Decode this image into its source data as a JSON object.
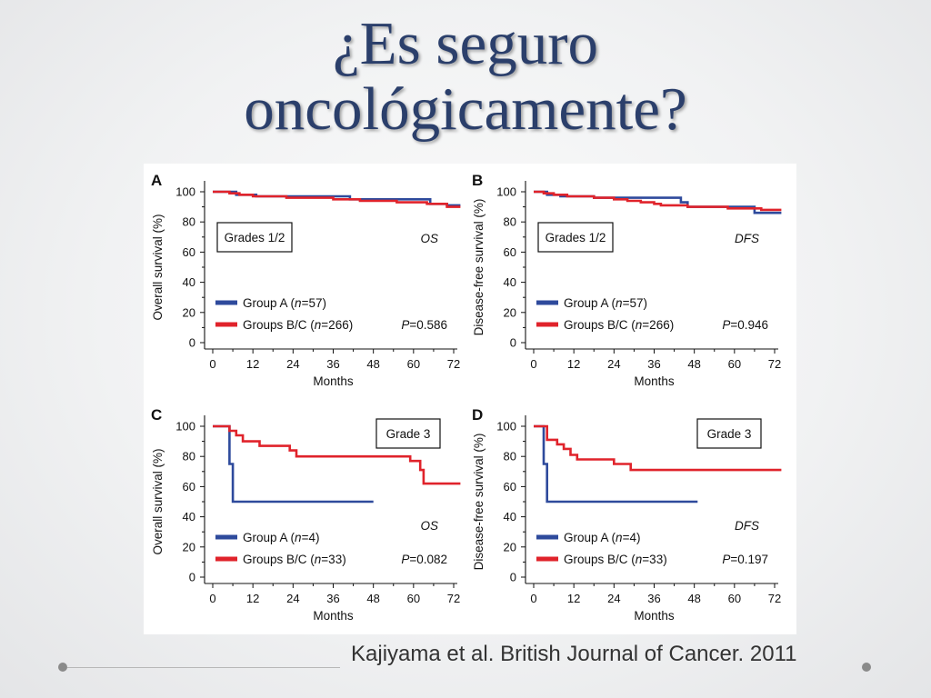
{
  "slide": {
    "title_line1": "¿Es seguro",
    "title_line2": "oncológicamente?",
    "citation": "Kajiyama et al. British Journal of Cancer. 2011"
  },
  "colors": {
    "groupA": "#2e4a9c",
    "groupBC": "#e0232b",
    "title": "#2b3f6b"
  },
  "chart_data": [
    {
      "panel": "A",
      "type": "line",
      "box_label": "Grades 1/2",
      "endpoint": "OS",
      "xlabel": "Months",
      "ylabel": "Overall survival (%)",
      "xlim": [
        0,
        72
      ],
      "ylim": [
        0,
        100
      ],
      "xticks": [
        "0",
        "12",
        "24",
        "36",
        "48",
        "60",
        "72"
      ],
      "yticks": [
        "0",
        "20",
        "40",
        "60",
        "80",
        "100"
      ],
      "p_value": "=0.586",
      "series": [
        {
          "name": "Group A",
          "n": "=57",
          "color": "#2e4a9c",
          "points": [
            [
              0,
              100
            ],
            [
              7,
              100
            ],
            [
              7,
              98
            ],
            [
              13,
              98
            ],
            [
              13,
              97
            ],
            [
              41,
              97
            ],
            [
              41,
              95
            ],
            [
              65,
              95
            ],
            [
              65,
              92
            ],
            [
              70,
              92
            ],
            [
              70,
              91
            ],
            [
              74,
              91
            ]
          ]
        },
        {
          "name": "Groups B/C",
          "n": "=266",
          "color": "#e0232b",
          "points": [
            [
              0,
              100
            ],
            [
              5,
              100
            ],
            [
              5,
              99
            ],
            [
              8,
              99
            ],
            [
              8,
              98
            ],
            [
              12,
              98
            ],
            [
              12,
              97
            ],
            [
              22,
              97
            ],
            [
              22,
              96
            ],
            [
              36,
              96
            ],
            [
              36,
              95
            ],
            [
              44,
              95
            ],
            [
              44,
              94
            ],
            [
              55,
              94
            ],
            [
              55,
              93
            ],
            [
              64,
              93
            ],
            [
              64,
              92
            ],
            [
              70,
              92
            ],
            [
              70,
              90
            ],
            [
              74,
              90
            ]
          ]
        }
      ]
    },
    {
      "panel": "B",
      "type": "line",
      "box_label": "Grades 1/2",
      "endpoint": "DFS",
      "xlabel": "Months",
      "ylabel": "Disease-free survival (%)",
      "xlim": [
        0,
        72
      ],
      "ylim": [
        0,
        100
      ],
      "xticks": [
        "0",
        "12",
        "24",
        "36",
        "48",
        "60",
        "72"
      ],
      "yticks": [
        "0",
        "20",
        "40",
        "60",
        "80",
        "100"
      ],
      "p_value": "=0.946",
      "series": [
        {
          "name": "Group A",
          "n": "=57",
          "color": "#2e4a9c",
          "points": [
            [
              0,
              100
            ],
            [
              4,
              100
            ],
            [
              4,
              98
            ],
            [
              8,
              98
            ],
            [
              8,
              97
            ],
            [
              18,
              97
            ],
            [
              18,
              96
            ],
            [
              44,
              96
            ],
            [
              44,
              93
            ],
            [
              46,
              93
            ],
            [
              46,
              90
            ],
            [
              66,
              90
            ],
            [
              66,
              86
            ],
            [
              74,
              86
            ]
          ]
        },
        {
          "name": "Groups B/C",
          "n": "=266",
          "color": "#e0232b",
          "points": [
            [
              0,
              100
            ],
            [
              3,
              100
            ],
            [
              3,
              99
            ],
            [
              6,
              99
            ],
            [
              6,
              98
            ],
            [
              10,
              98
            ],
            [
              10,
              97
            ],
            [
              18,
              97
            ],
            [
              18,
              96
            ],
            [
              24,
              96
            ],
            [
              24,
              95
            ],
            [
              28,
              95
            ],
            [
              28,
              94
            ],
            [
              32,
              94
            ],
            [
              32,
              93
            ],
            [
              36,
              93
            ],
            [
              36,
              92
            ],
            [
              38,
              92
            ],
            [
              38,
              91
            ],
            [
              46,
              91
            ],
            [
              46,
              90
            ],
            [
              58,
              90
            ],
            [
              58,
              89
            ],
            [
              68,
              89
            ],
            [
              68,
              88
            ],
            [
              74,
              88
            ]
          ]
        }
      ]
    },
    {
      "panel": "C",
      "type": "line",
      "box_label": "Grade 3",
      "endpoint": "OS",
      "xlabel": "Months",
      "ylabel": "Overall survival (%)",
      "xlim": [
        0,
        72
      ],
      "ylim": [
        0,
        100
      ],
      "xticks": [
        "0",
        "12",
        "24",
        "36",
        "48",
        "60",
        "72"
      ],
      "yticks": [
        "0",
        "20",
        "40",
        "60",
        "80",
        "100"
      ],
      "p_value": "=0.082",
      "series": [
        {
          "name": "Group A",
          "n": "=4",
          "color": "#2e4a9c",
          "points": [
            [
              0,
              100
            ],
            [
              5,
              100
            ],
            [
              5,
              75
            ],
            [
              6,
              75
            ],
            [
              6,
              50
            ],
            [
              48,
              50
            ]
          ]
        },
        {
          "name": "Groups B/C",
          "n": "=33",
          "color": "#e0232b",
          "points": [
            [
              0,
              100
            ],
            [
              5,
              100
            ],
            [
              5,
              97
            ],
            [
              7,
              97
            ],
            [
              7,
              94
            ],
            [
              9,
              94
            ],
            [
              9,
              90
            ],
            [
              14,
              90
            ],
            [
              14,
              87
            ],
            [
              23,
              87
            ],
            [
              23,
              84
            ],
            [
              25,
              84
            ],
            [
              25,
              80
            ],
            [
              59,
              80
            ],
            [
              59,
              77
            ],
            [
              62,
              77
            ],
            [
              62,
              71
            ],
            [
              63,
              71
            ],
            [
              63,
              62
            ],
            [
              74,
              62
            ]
          ]
        }
      ]
    },
    {
      "panel": "D",
      "type": "line",
      "box_label": "Grade 3",
      "endpoint": "DFS",
      "xlabel": "Months",
      "ylabel": "Disease-free survival (%)",
      "xlim": [
        0,
        72
      ],
      "ylim": [
        0,
        100
      ],
      "xticks": [
        "0",
        "12",
        "24",
        "36",
        "48",
        "60",
        "72"
      ],
      "yticks": [
        "0",
        "20",
        "40",
        "60",
        "80",
        "100"
      ],
      "p_value": "=0.197",
      "series": [
        {
          "name": "Group A",
          "n": "=4",
          "color": "#2e4a9c",
          "points": [
            [
              0,
              100
            ],
            [
              3,
              100
            ],
            [
              3,
              75
            ],
            [
              4,
              75
            ],
            [
              4,
              50
            ],
            [
              49,
              50
            ]
          ]
        },
        {
          "name": "Groups B/C",
          "n": "=33",
          "color": "#e0232b",
          "points": [
            [
              0,
              100
            ],
            [
              4,
              100
            ],
            [
              4,
              91
            ],
            [
              7,
              91
            ],
            [
              7,
              88
            ],
            [
              9,
              88
            ],
            [
              9,
              85
            ],
            [
              11,
              85
            ],
            [
              11,
              81
            ],
            [
              13,
              81
            ],
            [
              13,
              78
            ],
            [
              24,
              78
            ],
            [
              24,
              75
            ],
            [
              29,
              75
            ],
            [
              29,
              71
            ],
            [
              74,
              71
            ]
          ]
        }
      ]
    }
  ]
}
